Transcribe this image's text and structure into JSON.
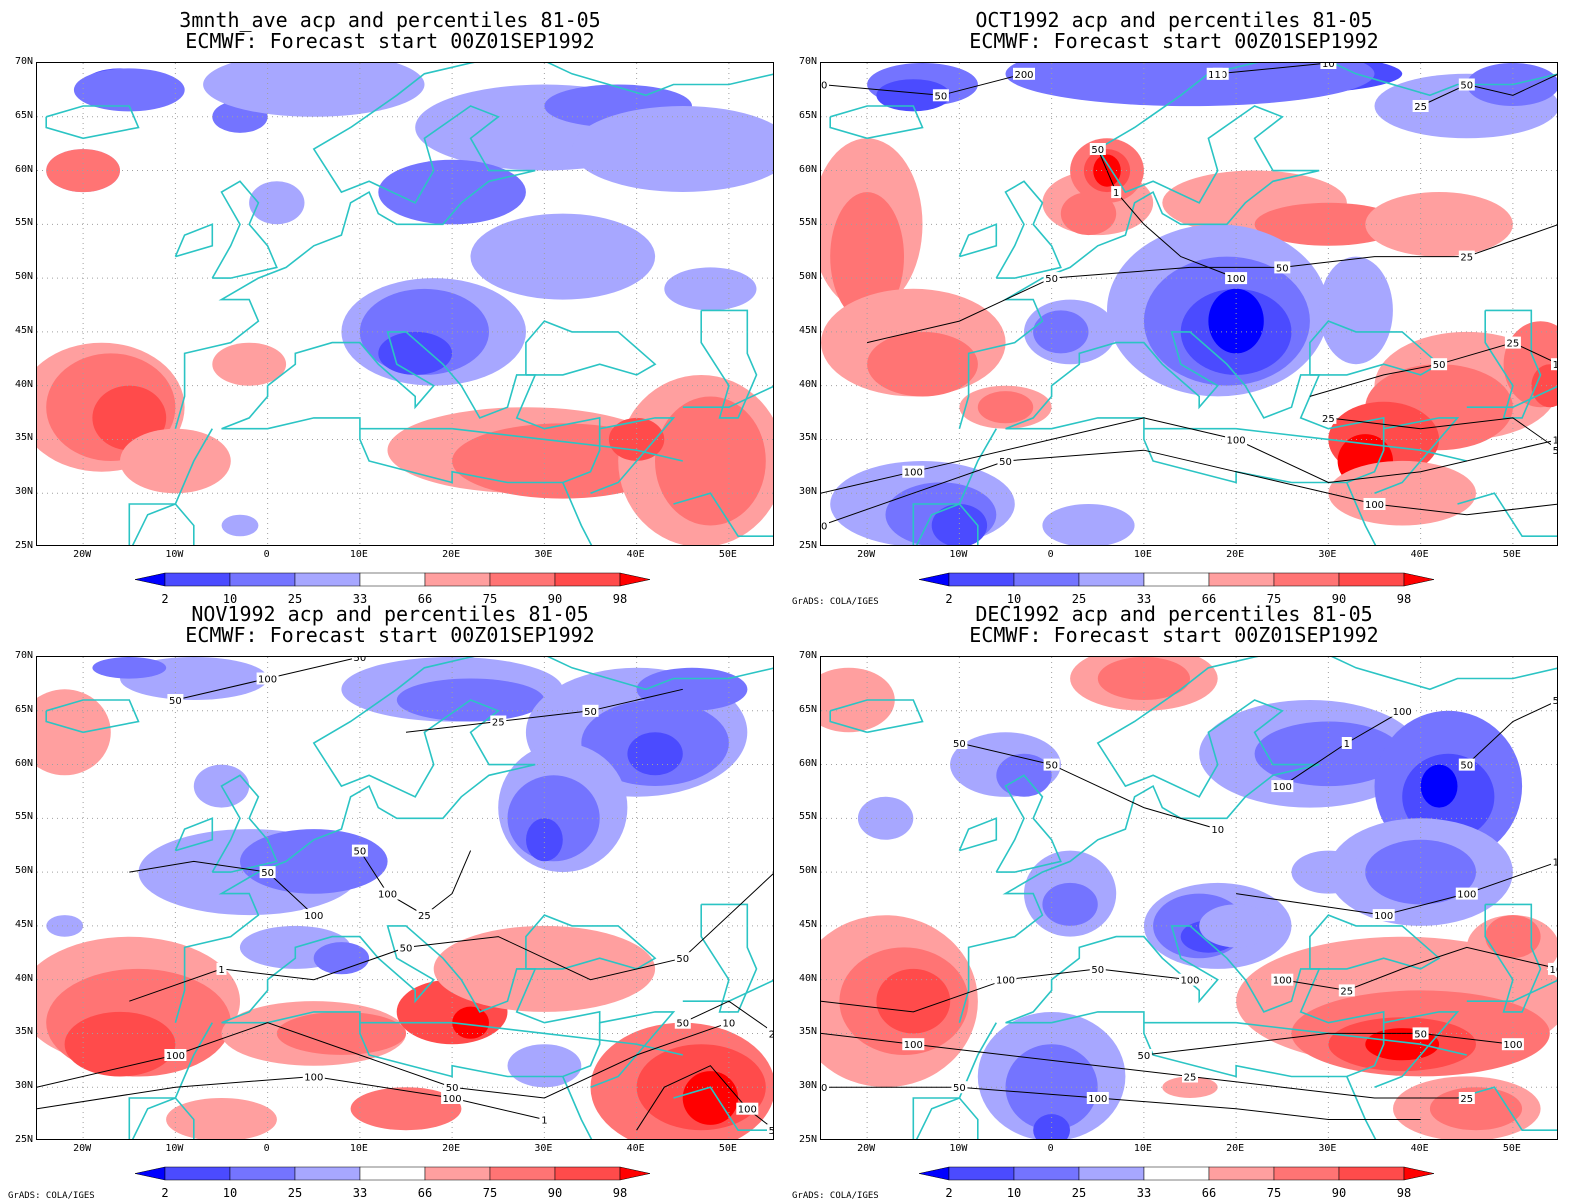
{
  "panels": [
    {
      "id": "p1",
      "title_line1": "3mnth_ave acp and percentiles 81-05",
      "title_line2": "ECMWF: Forecast start 00Z01SEP1992",
      "credit": ""
    },
    {
      "id": "p2",
      "title_line1": "OCT1992 acp and percentiles 81-05",
      "title_line2": "ECMWF: Forecast start 00Z01SEP1992",
      "credit": "GrADS: COLA/IGES"
    },
    {
      "id": "p3",
      "title_line1": "NOV1992 acp and percentiles 81-05",
      "title_line2": "ECMWF: Forecast start 00Z01SEP1992",
      "credit": "GrADS: COLA/IGES"
    },
    {
      "id": "p4",
      "title_line1": "DEC1992 acp and percentiles 81-05",
      "title_line2": "ECMWF: Forecast start 00Z01SEP1992",
      "credit": "GrADS: COLA/IGES"
    }
  ],
  "lat_ticks": [
    "70N",
    "65N",
    "60N",
    "55N",
    "50N",
    "45N",
    "40N",
    "35N",
    "30N",
    "25N"
  ],
  "lon_ticks": [
    "20W",
    "10W",
    "0",
    "10E",
    "20E",
    "30E",
    "40E",
    "50E"
  ],
  "colorbar": {
    "labels": [
      "2",
      "10",
      "25",
      "33",
      "66",
      "75",
      "90",
      "98"
    ],
    "colors": [
      "#0000ff",
      "#4b4bff",
      "#7474ff",
      "#a7a7ff",
      "#ffffff",
      "#ff9f9f",
      "#ff7474",
      "#ff4b4b",
      "#ff0000"
    ]
  },
  "colors": {
    "coastline": "#2bc4c4",
    "contour": "#000000",
    "grid": "#a0a0a0"
  },
  "contour_labels": {
    "p2": [
      "100",
      "50",
      "50",
      "100",
      "200",
      "100",
      "50",
      "25",
      "50",
      "100",
      "100",
      "50",
      "50",
      "50",
      "10",
      "25",
      "50",
      "25",
      "10",
      "50",
      "25",
      "1",
      "10",
      "1",
      "10"
    ],
    "p3": [
      "100",
      "100",
      "50",
      "100",
      "50",
      "50",
      "100",
      "100",
      "50",
      "50",
      "100",
      "50",
      "50",
      "100",
      "25",
      "50",
      "50",
      "25",
      "10",
      "1",
      "1",
      "50",
      "25"
    ],
    "p4": [
      "100",
      "100",
      "50",
      "100",
      "50",
      "100",
      "100",
      "100",
      "50",
      "25",
      "50",
      "100",
      "100",
      "50",
      "100",
      "100",
      "50",
      "50",
      "25",
      "100",
      "50",
      "25",
      "10",
      "1",
      "10",
      "50"
    ]
  }
}
